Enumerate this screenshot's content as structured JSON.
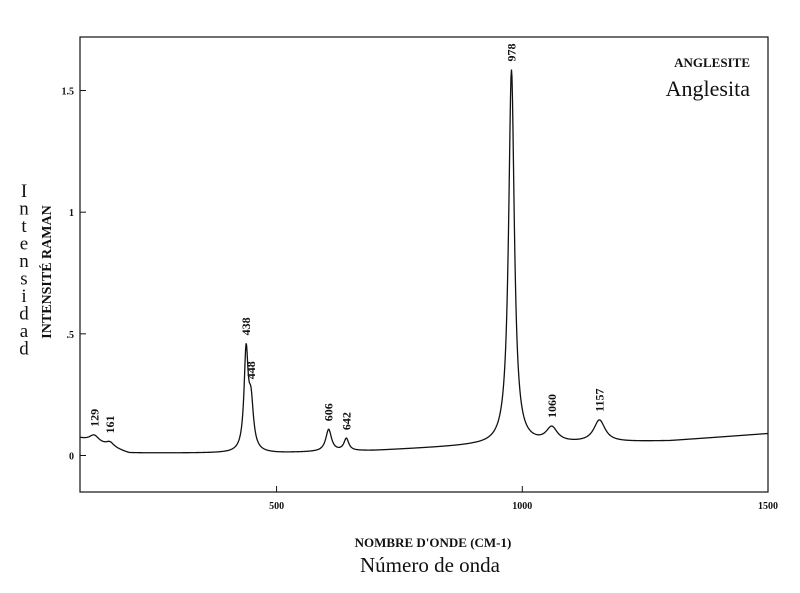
{
  "chart_data": {
    "type": "line",
    "title": "ANGLESITE",
    "subtitle": "Anglesita",
    "xlabel": "NOMBRE D'ONDE (CM-1)",
    "xlabel_secondary": "Número de onda",
    "ylabel": "INTENSITÉ RAMAN",
    "ylabel_secondary": "Intensidad",
    "xlim": [
      100,
      1500
    ],
    "ylim": [
      -0.15,
      1.72
    ],
    "xticks": [
      500,
      1000,
      1500
    ],
    "xtick_labels": [
      "500",
      "1000",
      "1500"
    ],
    "yticks": [
      0,
      0.5,
      1,
      1.5
    ],
    "ytick_labels": [
      "0",
      ".5",
      "1",
      "1.5"
    ],
    "grid": false,
    "baseline": {
      "x": [
        100,
        200,
        400,
        500,
        700,
        900,
        1100,
        1300,
        1500
      ],
      "y": [
        0.07,
        0.01,
        0.01,
        0.01,
        0.02,
        0.04,
        0.05,
        0.06,
        0.09
      ]
    },
    "peaks": [
      {
        "x": 129,
        "height": 0.03,
        "width": 12,
        "label": "129"
      },
      {
        "x": 161,
        "height": 0.02,
        "width": 10,
        "label": "161"
      },
      {
        "x": 438,
        "height": 0.4,
        "width": 5,
        "label": "438"
      },
      {
        "x": 448,
        "height": 0.19,
        "width": 6,
        "label": "448"
      },
      {
        "x": 606,
        "height": 0.09,
        "width": 7,
        "label": "606"
      },
      {
        "x": 642,
        "height": 0.05,
        "width": 6,
        "label": "642"
      },
      {
        "x": 978,
        "height": 1.54,
        "width": 7,
        "label": "978"
      },
      {
        "x": 1060,
        "height": 0.06,
        "width": 14,
        "label": "1060"
      },
      {
        "x": 1157,
        "height": 0.09,
        "width": 14,
        "label": "1157"
      }
    ]
  }
}
